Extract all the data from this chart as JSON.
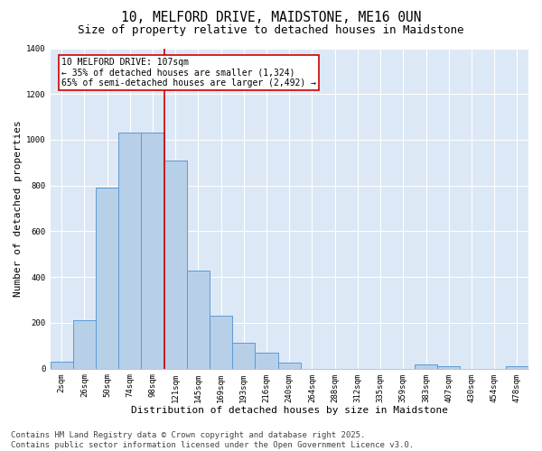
{
  "title1": "10, MELFORD DRIVE, MAIDSTONE, ME16 0UN",
  "title2": "Size of property relative to detached houses in Maidstone",
  "xlabel": "Distribution of detached houses by size in Maidstone",
  "ylabel": "Number of detached properties",
  "categories": [
    "2sqm",
    "26sqm",
    "50sqm",
    "74sqm",
    "98sqm",
    "121sqm",
    "145sqm",
    "169sqm",
    "193sqm",
    "216sqm",
    "240sqm",
    "264sqm",
    "288sqm",
    "312sqm",
    "335sqm",
    "359sqm",
    "383sqm",
    "407sqm",
    "430sqm",
    "454sqm",
    "478sqm"
  ],
  "values": [
    30,
    210,
    790,
    1030,
    1030,
    910,
    430,
    230,
    115,
    70,
    25,
    0,
    0,
    0,
    0,
    0,
    20,
    10,
    0,
    0,
    10
  ],
  "bar_color": "#b8cfe8",
  "bar_edge_color": "#5b9bd5",
  "vline_x_idx": 4,
  "vline_color": "#cc0000",
  "annotation_text": "10 MELFORD DRIVE: 107sqm\n← 35% of detached houses are smaller (1,324)\n65% of semi-detached houses are larger (2,492) →",
  "annotation_box_color": "white",
  "annotation_box_edge": "#cc0000",
  "ylim": [
    0,
    1400
  ],
  "yticks": [
    0,
    200,
    400,
    600,
    800,
    1000,
    1200,
    1400
  ],
  "bg_color": "#dce8f5",
  "grid_color": "white",
  "footer": "Contains HM Land Registry data © Crown copyright and database right 2025.\nContains public sector information licensed under the Open Government Licence v3.0.",
  "title_fontsize": 10.5,
  "subtitle_fontsize": 9,
  "label_fontsize": 8,
  "tick_fontsize": 6.5,
  "footer_fontsize": 6.5,
  "annot_fontsize": 7
}
